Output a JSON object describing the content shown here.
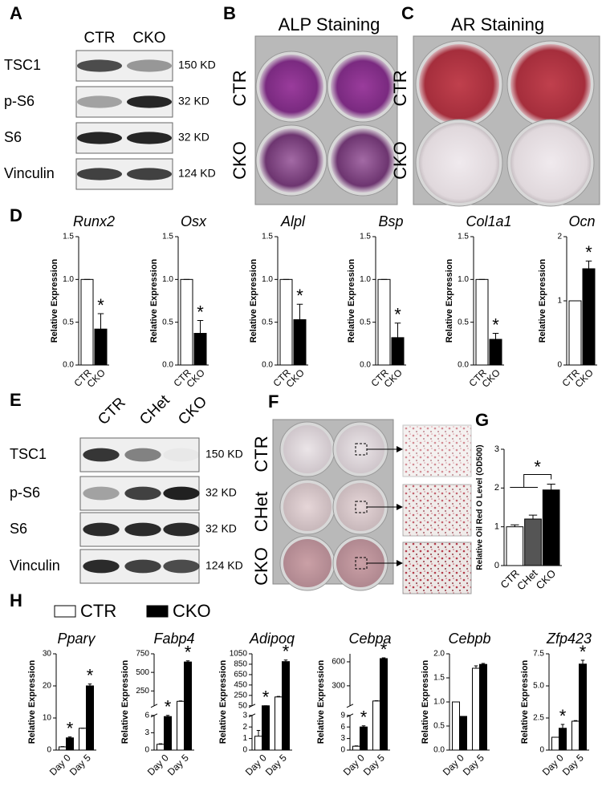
{
  "panels": {
    "A": {
      "label": "A",
      "lanes": [
        "CTR",
        "CKO"
      ],
      "rows": [
        {
          "protein": "TSC1",
          "size": "150 KD"
        },
        {
          "protein": "p-S6",
          "size": "32 KD"
        },
        {
          "protein": "S6",
          "size": "32 KD"
        },
        {
          "protein": "Vinculin",
          "size": "124 KD"
        }
      ]
    },
    "B": {
      "label": "B",
      "title": "ALP Staining",
      "rows": [
        "CTR",
        "CKO"
      ]
    },
    "C": {
      "label": "C",
      "title": "AR Staining",
      "rows": [
        "CTR",
        "CKO"
      ]
    },
    "D": {
      "label": "D"
    },
    "E": {
      "label": "E",
      "lanes": [
        "CTR",
        "CHet",
        "CKO"
      ],
      "rows": [
        {
          "protein": "TSC1",
          "size": "150 KD"
        },
        {
          "protein": "p-S6",
          "size": "32 KD"
        },
        {
          "protein": "S6",
          "size": "32 KD"
        },
        {
          "protein": "Vinculin",
          "size": "124 KD"
        }
      ]
    },
    "F": {
      "label": "F",
      "rows": [
        "CTR",
        "CHet",
        "CKO"
      ]
    },
    "G": {
      "label": "G"
    },
    "H": {
      "label": "H",
      "legend": [
        {
          "name": "CTR",
          "color": "#ffffff"
        },
        {
          "name": "CKO",
          "color": "#000000"
        }
      ]
    }
  },
  "chart_data": [
    {
      "type": "bar",
      "title": "Runx2",
      "ylabel": "Relative Expression",
      "categories": [
        "CTR",
        "CKO"
      ],
      "values": [
        1.0,
        0.42
      ],
      "errors": [
        0,
        0.18
      ],
      "colors": [
        "#ffffff",
        "#000000"
      ],
      "ylim": [
        0,
        1.5
      ],
      "yticks": [
        {
          "value": 0,
          "label": "0.0"
        },
        0.5,
        {
          "value": 1,
          "label": "1.0"
        },
        1.5
      ],
      "annotation": "*"
    },
    {
      "type": "bar",
      "title": "Osx",
      "ylabel": "Relative Expression",
      "categories": [
        "CTR",
        "CKO"
      ],
      "values": [
        1.0,
        0.37
      ],
      "errors": [
        0,
        0.15
      ],
      "colors": [
        "#ffffff",
        "#000000"
      ],
      "ylim": [
        0,
        1.5
      ],
      "yticks": [
        {
          "value": 0,
          "label": "0.0"
        },
        0.5,
        {
          "value": 1,
          "label": "1.0"
        },
        1.5
      ],
      "annotation": "*"
    },
    {
      "type": "bar",
      "title": "Alpl",
      "ylabel": "Relative Expression",
      "categories": [
        "CTR",
        "CKO"
      ],
      "values": [
        1.0,
        0.53
      ],
      "errors": [
        0,
        0.18
      ],
      "colors": [
        "#ffffff",
        "#000000"
      ],
      "ylim": [
        0,
        1.5
      ],
      "yticks": [
        {
          "value": 0,
          "label": "0.0"
        },
        0.5,
        {
          "value": 1,
          "label": "1.0"
        },
        1.5
      ],
      "annotation": "*"
    },
    {
      "type": "bar",
      "title": "Bsp",
      "ylabel": "Relative Expression",
      "categories": [
        "CTR",
        "CKO"
      ],
      "values": [
        1.0,
        0.32
      ],
      "errors": [
        0,
        0.17
      ],
      "colors": [
        "#ffffff",
        "#000000"
      ],
      "ylim": [
        0,
        1.5
      ],
      "yticks": [
        {
          "value": 0,
          "label": "0.0"
        },
        0.5,
        {
          "value": 1,
          "label": "1.0"
        },
        1.5
      ],
      "annotation": "*"
    },
    {
      "type": "bar",
      "title": "Col1a1",
      "ylabel": "Relative Expression",
      "categories": [
        "CTR",
        "CKO"
      ],
      "values": [
        1.0,
        0.3
      ],
      "errors": [
        0,
        0.07
      ],
      "colors": [
        "#ffffff",
        "#000000"
      ],
      "ylim": [
        0,
        1.5
      ],
      "yticks": [
        {
          "value": 0,
          "label": "0.0"
        },
        0.5,
        {
          "value": 1,
          "label": "1.0"
        },
        1.5
      ],
      "annotation": "*"
    },
    {
      "type": "bar",
      "title": "Ocn",
      "ylabel": "Relative Expression",
      "categories": [
        "CTR",
        "CKO"
      ],
      "values": [
        1.0,
        1.5
      ],
      "errors": [
        0,
        0.12
      ],
      "colors": [
        "#ffffff",
        "#000000"
      ],
      "ylim": [
        0,
        2
      ],
      "yticks": [
        0,
        1,
        2
      ],
      "annotation": "*"
    },
    {
      "type": "bar",
      "ylabel": "Relative Oil Red O Level (OD500)",
      "categories": [
        "CTR",
        "CHet",
        "CKO"
      ],
      "values": [
        1.0,
        1.2,
        1.95
      ],
      "errors": [
        0.05,
        0.1,
        0.15
      ],
      "colors": [
        "#ffffff",
        "#555555",
        "#000000"
      ],
      "ylim": [
        0,
        3
      ],
      "yticks": [
        0,
        1,
        2,
        3
      ],
      "annotation": "*"
    },
    {
      "type": "grouped-bar",
      "title": "Pparγ",
      "ylabel": "Relative Expression",
      "categories": [
        "Day 0",
        "Day 5"
      ],
      "ylim": [
        0,
        30
      ],
      "yticks": [
        0,
        10,
        20,
        30
      ],
      "series": [
        {
          "color": "#ffffff",
          "values": [
            1,
            6.8
          ],
          "errors": [
            0.1,
            0
          ]
        },
        {
          "color": "#000000",
          "values": [
            3.8,
            20
          ],
          "errors": [
            0.3,
            0.6
          ],
          "annotations": [
            "*",
            "*"
          ]
        }
      ]
    },
    {
      "type": "grouped-bar",
      "title": "Fabp4",
      "ylabel": "Relative Expression",
      "categories": [
        "Day 0",
        "Day 5"
      ],
      "segments": [
        {
          "ylim": [
            0,
            6
          ],
          "yticks": [
            0,
            3,
            6
          ]
        },
        {
          "ylim": [
            50,
            750
          ],
          "yticks": [
            250,
            500,
            750
          ]
        }
      ],
      "series": [
        {
          "color": "#ffffff",
          "values": [
            1,
            110
          ],
          "errors": [
            0.1,
            5
          ]
        },
        {
          "color": "#000000",
          "values": [
            5.8,
            640
          ],
          "errors": [
            0.2,
            15
          ],
          "annotations": [
            "*",
            "*"
          ]
        }
      ]
    },
    {
      "type": "grouped-bar",
      "title": "Adipoq",
      "ylabel": "Relative Expression",
      "categories": [
        "Day 0",
        "Day 5"
      ],
      "segments": [
        {
          "ylim": [
            0,
            3
          ],
          "yticks": [
            0,
            1,
            2,
            3
          ]
        },
        {
          "ylim": [
            50,
            1050
          ],
          "yticks": [
            50,
            250,
            450,
            650,
            850,
            1050
          ]
        }
      ],
      "series": [
        {
          "color": "#ffffff",
          "values": [
            1.2,
            220
          ],
          "errors": [
            0.5,
            10
          ]
        },
        {
          "color": "#000000",
          "values": [
            50,
            900
          ],
          "errors": [
            0,
            30
          ],
          "annotations": [
            "*",
            "*"
          ]
        }
      ]
    },
    {
      "type": "grouped-bar",
      "title": "Cebpa",
      "ylabel": "Relative Expression",
      "categories": [
        "Day 0",
        "Day 5"
      ],
      "segments": [
        {
          "ylim": [
            0,
            9
          ],
          "yticks": [
            0,
            3,
            6,
            9
          ]
        },
        {
          "ylim": [
            50,
            700
          ],
          "yticks": [
            300,
            600
          ]
        }
      ],
      "series": [
        {
          "color": "#ffffff",
          "values": [
            1,
            110
          ],
          "errors": [
            0.1,
            3
          ]
        },
        {
          "color": "#000000",
          "values": [
            6,
            640
          ],
          "errors": [
            0.3,
            10
          ],
          "annotations": [
            "*",
            "*"
          ]
        }
      ]
    },
    {
      "type": "grouped-bar",
      "title": "Cebpb",
      "ylabel": "Relative Expression",
      "categories": [
        "Day 0",
        "Day 5"
      ],
      "ylim": [
        0,
        2
      ],
      "yticks": [
        {
          "value": 0,
          "label": "0.0"
        },
        0.5,
        {
          "value": 1,
          "label": "1.0"
        },
        1.5,
        {
          "value": 2,
          "label": "2.0"
        }
      ],
      "series": [
        {
          "color": "#ffffff",
          "values": [
            1.0,
            1.7
          ],
          "errors": [
            0,
            0.05
          ]
        },
        {
          "color": "#000000",
          "values": [
            0.7,
            1.78
          ],
          "errors": [
            0,
            0.02
          ]
        }
      ]
    },
    {
      "type": "grouped-bar",
      "title": "Zfp423",
      "ylabel": "Relative Expression",
      "categories": [
        "Day 0",
        "Day 5"
      ],
      "ylim": [
        0,
        7.5
      ],
      "yticks": [
        0,
        2.5,
        {
          "value": 5,
          "label": "5.0"
        },
        7.5
      ],
      "series": [
        {
          "color": "#ffffff",
          "values": [
            1,
            2.25
          ],
          "errors": [
            0,
            0.05
          ]
        },
        {
          "color": "#000000",
          "values": [
            1.7,
            6.7
          ],
          "errors": [
            0.3,
            0.3
          ],
          "annotations": [
            "*",
            "*"
          ]
        }
      ]
    }
  ]
}
